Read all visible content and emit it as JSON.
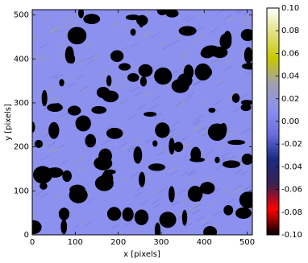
{
  "chart_data": {
    "type": "image",
    "xlabel": "x [pixels]",
    "ylabel": "y [pixels]",
    "xlim": [
      0,
      512
    ],
    "ylim": [
      0,
      512
    ],
    "xticks": [
      0,
      100,
      200,
      300,
      400,
      500
    ],
    "yticks": [
      0,
      100,
      200,
      300,
      400,
      500
    ],
    "image_color": "#8c90ee",
    "mask_color": "#000000",
    "colorbar": {
      "lim": [
        -0.1,
        0.1
      ],
      "ticks": [
        {
          "value": -0.1,
          "label": "-0.10"
        },
        {
          "value": -0.08,
          "label": "-0.08"
        },
        {
          "value": -0.06,
          "label": "-0.06"
        },
        {
          "value": -0.04,
          "label": "-0.04"
        },
        {
          "value": -0.02,
          "label": "-0.02"
        },
        {
          "value": 0,
          "label": "0.00"
        },
        {
          "value": 0.02,
          "label": "0.02"
        },
        {
          "value": 0.04,
          "label": "0.04"
        },
        {
          "value": 0.06,
          "label": "0.06"
        },
        {
          "value": 0.08,
          "label": "0.08"
        },
        {
          "value": 0.1,
          "label": "0.10"
        }
      ],
      "colormap": [
        "#000000",
        "#ff0000",
        "#3a2050",
        "#1a2a80",
        "#6a6ee0",
        "#8c90ee",
        "#a0a0b0",
        "#c8c800",
        "#e0e080",
        "#ffffff"
      ]
    }
  }
}
